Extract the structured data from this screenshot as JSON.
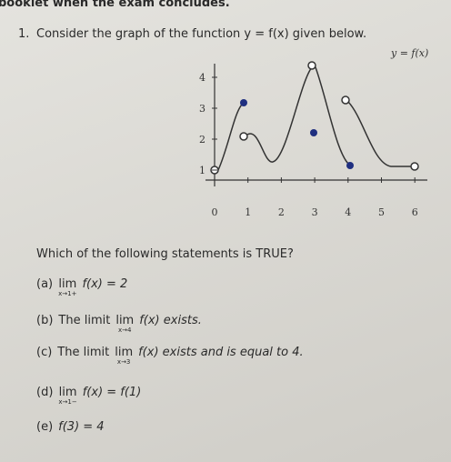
{
  "header": "booklet when the exam concludes.",
  "question": {
    "number": "1.",
    "text": "Consider the graph of the function y = f(x) given below."
  },
  "graph": {
    "label": "y = f(x)",
    "xticks": [
      "0",
      "1",
      "2",
      "3",
      "4",
      "5",
      "6"
    ],
    "yticks": [
      "1",
      "2",
      "3",
      "4"
    ]
  },
  "prompt": "Which of the following statements is TRUE?",
  "options": [
    {
      "label": "(a)",
      "lim": "lim",
      "sub": "x→1+",
      "after": "f(x) = 2"
    },
    {
      "label": "(b)",
      "before": "The limit",
      "lim": "lim",
      "sub": "x→4",
      "after": "f(x) exists."
    },
    {
      "label": "(c)",
      "before": "The limit",
      "lim": "lim",
      "sub": "x→3",
      "after": "f(x) exists and is equal to 4."
    },
    {
      "label": "(d)",
      "lim": "lim",
      "sub": "x→1−",
      "after": "f(x) = f(1)"
    },
    {
      "label": "(e)",
      "after": "f(3) = 4"
    }
  ]
}
